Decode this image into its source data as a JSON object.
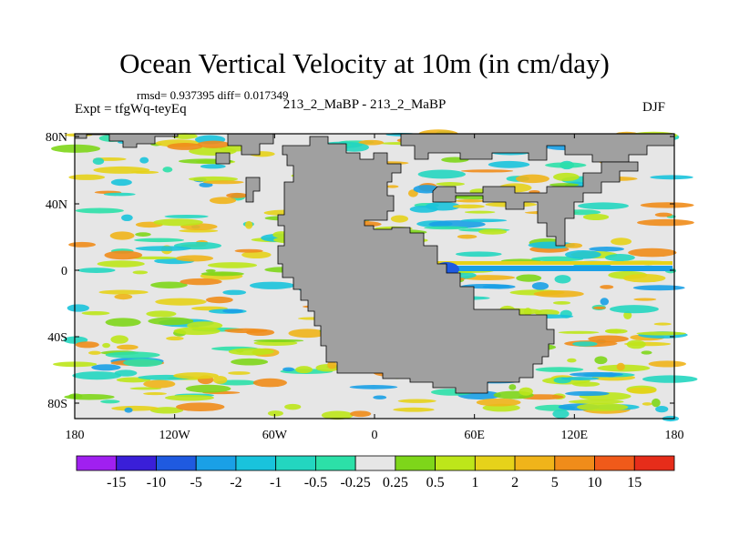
{
  "title": "Ocean Vertical Velocity at 10m (in cm/day)",
  "stats": "rmsd= 0.937395 diff= 0.017349",
  "experiment": "Expt = tfgWq-teyEq",
  "comparison": "213_2_MaBP - 213_2_MaBP",
  "season": "DJF",
  "lat_ticks": [
    "80N",
    "40N",
    "0",
    "40S",
    "80S"
  ],
  "lon_ticks": [
    "180",
    "120W",
    "60W",
    "0",
    "60E",
    "120E",
    "180"
  ],
  "colorbar": {
    "levels": [
      "-15",
      "-10",
      "-5",
      "-2",
      "-1",
      "-0.5",
      "-0.25",
      "0.25",
      "0.5",
      "1",
      "2",
      "5",
      "10",
      "15"
    ],
    "colors": [
      "#a020f0",
      "#3a1fd8",
      "#1f5ae0",
      "#1aa0e6",
      "#19c3dc",
      "#23d6c0",
      "#2ce0a8",
      "#e6e6e6",
      "#7ed61a",
      "#bde61a",
      "#e6d21a",
      "#f0b41a",
      "#f08c1a",
      "#f05a1a",
      "#e62d1a"
    ]
  },
  "colors": {
    "land": "#a0a0a0",
    "near_zero": "#e6e6e6"
  }
}
